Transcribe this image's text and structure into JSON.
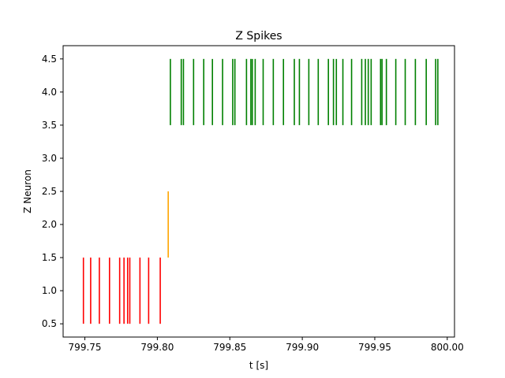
{
  "chart_data": {
    "type": "scatter",
    "marker": "vertical-line",
    "title": "Z Spikes",
    "xlabel": "t [s]",
    "ylabel": "Z Neuron",
    "xlim": [
      799.735,
      800.005
    ],
    "ylim": [
      0.3,
      4.7
    ],
    "xticks": [
      799.75,
      799.8,
      799.85,
      799.9,
      799.95,
      800.0
    ],
    "xtick_labels": [
      "799.75",
      "799.80",
      "799.85",
      "799.90",
      "799.95",
      "800.00"
    ],
    "yticks": [
      0.5,
      1.0,
      1.5,
      2.0,
      2.5,
      3.0,
      3.5,
      4.0,
      4.5
    ],
    "ytick_labels": [
      "0.5",
      "1.0",
      "1.5",
      "2.0",
      "2.5",
      "3.0",
      "3.5",
      "4.0",
      "4.5"
    ],
    "grid": false,
    "series": [
      {
        "neuron": 1,
        "color": "#ff0000",
        "y_range": [
          0.5,
          1.5
        ],
        "x": [
          799.749,
          799.754,
          799.76,
          799.767,
          799.774,
          799.777,
          799.7795,
          799.781,
          799.788,
          799.794,
          799.802
        ]
      },
      {
        "neuron": 2,
        "color": "#ffa500",
        "y_range": [
          1.5,
          2.5
        ],
        "x": [
          799.8075
        ]
      },
      {
        "neuron": 4,
        "color": "#008000",
        "y_range": [
          3.5,
          4.5
        ],
        "x": [
          799.809,
          799.8165,
          799.818,
          799.825,
          799.832,
          799.838,
          799.845,
          799.852,
          799.8535,
          799.8615,
          799.8645,
          799.8655,
          799.8675,
          799.873,
          799.88,
          799.887,
          799.8945,
          799.898,
          799.9045,
          799.911,
          799.918,
          799.9215,
          799.9235,
          799.928,
          799.934,
          799.941,
          799.9435,
          799.9455,
          799.9475,
          799.954,
          799.955,
          799.958,
          799.9645,
          799.971,
          799.978,
          799.9855,
          799.992,
          799.9935
        ]
      }
    ]
  }
}
